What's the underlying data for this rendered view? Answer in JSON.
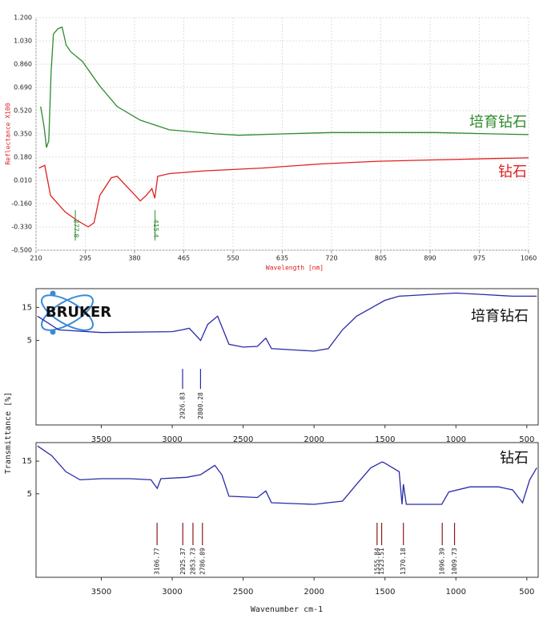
{
  "chart_data": [
    {
      "type": "line",
      "ylabel": "Reflectance X100",
      "xlabel": "Wavelength [nm]",
      "xlim": [
        210,
        1060
      ],
      "xticks": [
        210,
        295,
        380,
        465,
        550,
        635,
        720,
        805,
        890,
        975,
        1060
      ],
      "ylim": [
        -0.5,
        1.2
      ],
      "yticks": [
        {
          "value": -0.5,
          "label": "-0.500"
        },
        {
          "value": -0.33,
          "label": "-0.330"
        },
        {
          "value": -0.16,
          "label": "-0.160"
        },
        {
          "value": 0.01,
          "label": "0.010"
        },
        {
          "value": 0.18,
          "label": "0.180"
        },
        {
          "value": 0.35,
          "label": "0.350"
        },
        {
          "value": 0.52,
          "label": "0.520"
        },
        {
          "value": 0.69,
          "label": "0.690"
        },
        {
          "value": 0.86,
          "label": "0.860"
        },
        {
          "value": 1.03,
          "label": "1.030"
        },
        {
          "value": 1.2,
          "label": "1.200"
        }
      ],
      "grid": true,
      "series": [
        {
          "name": "培育钻石",
          "color": "#2e8b2e",
          "x": [
            218,
            224,
            228,
            232,
            236,
            240,
            248,
            255,
            262,
            270,
            290,
            320,
            350,
            390,
            440,
            520,
            560,
            635,
            720,
            800,
            900,
            1000,
            1060
          ],
          "values": [
            0.55,
            0.4,
            0.25,
            0.3,
            0.8,
            1.08,
            1.12,
            1.13,
            1.0,
            0.95,
            0.88,
            0.7,
            0.55,
            0.45,
            0.38,
            0.35,
            0.34,
            0.35,
            0.36,
            0.36,
            0.36,
            0.35,
            0.345
          ]
        },
        {
          "name": "钻石",
          "color": "#e02020",
          "x": [
            215,
            225,
            235,
            260,
            280,
            300,
            310,
            320,
            340,
            350,
            370,
            390,
            400,
            410,
            415,
            420,
            440,
            500,
            600,
            700,
            800,
            900,
            1000,
            1060
          ],
          "values": [
            0.1,
            0.12,
            -0.1,
            -0.22,
            -0.28,
            -0.33,
            -0.3,
            -0.1,
            0.03,
            0.04,
            -0.05,
            -0.14,
            -0.1,
            -0.05,
            -0.12,
            0.04,
            0.06,
            0.08,
            0.1,
            0.13,
            0.15,
            0.16,
            0.17,
            0.175
          ]
        }
      ],
      "peaks": [
        277.8,
        415.4
      ],
      "peak_color": "#2e8b2e"
    },
    {
      "type": "line",
      "logo": "BRUKER",
      "ylabel": "Transmittance [%]",
      "xlim": [
        3960,
        420
      ],
      "xticks": [
        3500,
        3000,
        2500,
        2000,
        1500,
        1000,
        500
      ],
      "ylim": [
        0.3,
        28
      ],
      "yticks": [
        5,
        15
      ],
      "log_y": true,
      "series": [
        {
          "name": "培育钻石",
          "color": "#2a2aa8",
          "x": [
            3950,
            3800,
            3500,
            3000,
            2930,
            2880,
            2800,
            2750,
            2680,
            2600,
            2500,
            2400,
            2340,
            2300,
            2100,
            2000,
            1900,
            1800,
            1700,
            1600,
            1500,
            1400,
            1200,
            1000,
            800,
            600,
            430
          ],
          "values": [
            11.2,
            7.1,
            6.5,
            6.7,
            7.1,
            7.5,
            5,
            8.5,
            11.2,
            4.4,
            4.0,
            4.1,
            5.4,
            3.8,
            3.6,
            3.5,
            3.8,
            7.1,
            11.2,
            14.6,
            19,
            21.8,
            23,
            24.2,
            23,
            21.8,
            21.8
          ]
        }
      ],
      "peaks": [
        2926.83,
        2800.28
      ],
      "peak_color": "#2a2aa8"
    },
    {
      "type": "line",
      "xlabel": "Wavenumber cm-1",
      "xlim": [
        3960,
        420
      ],
      "xticks": [
        3500,
        3000,
        2500,
        2000,
        1500,
        1000,
        500
      ],
      "ylim": [
        0.3,
        28
      ],
      "yticks": [
        5,
        15
      ],
      "log_y": true,
      "series": [
        {
          "name": "钻石",
          "color": "#2a2aa8",
          "x": [
            3950,
            3850,
            3750,
            3650,
            3500,
            3300,
            3150,
            3106,
            3080,
            2900,
            2800,
            2700,
            2650,
            2600,
            2400,
            2340,
            2300,
            2000,
            1800,
            1700,
            1600,
            1520,
            1500,
            1400,
            1380,
            1370,
            1350,
            1100,
            1050,
            900,
            700,
            600,
            530,
            480,
            430
          ],
          "values": [
            25,
            18.1,
            10.5,
            8,
            8.3,
            8.3,
            8,
            6,
            8.3,
            8.7,
            9.5,
            13,
            9.5,
            4.6,
            4.4,
            5.5,
            3.7,
            3.5,
            3.9,
            6.9,
            12,
            14.6,
            14,
            10.5,
            3.5,
            6.9,
            3.5,
            3.5,
            5.3,
            6.3,
            6.3,
            5.7,
            3.7,
            8,
            12
          ]
        }
      ],
      "peaks": [
        3106.77,
        2925.37,
        2853.73,
        2786.89,
        1555.84,
        1523.51,
        1370.18,
        1096.39,
        1009.73
      ],
      "peak_color": "#8b1a1a"
    }
  ]
}
